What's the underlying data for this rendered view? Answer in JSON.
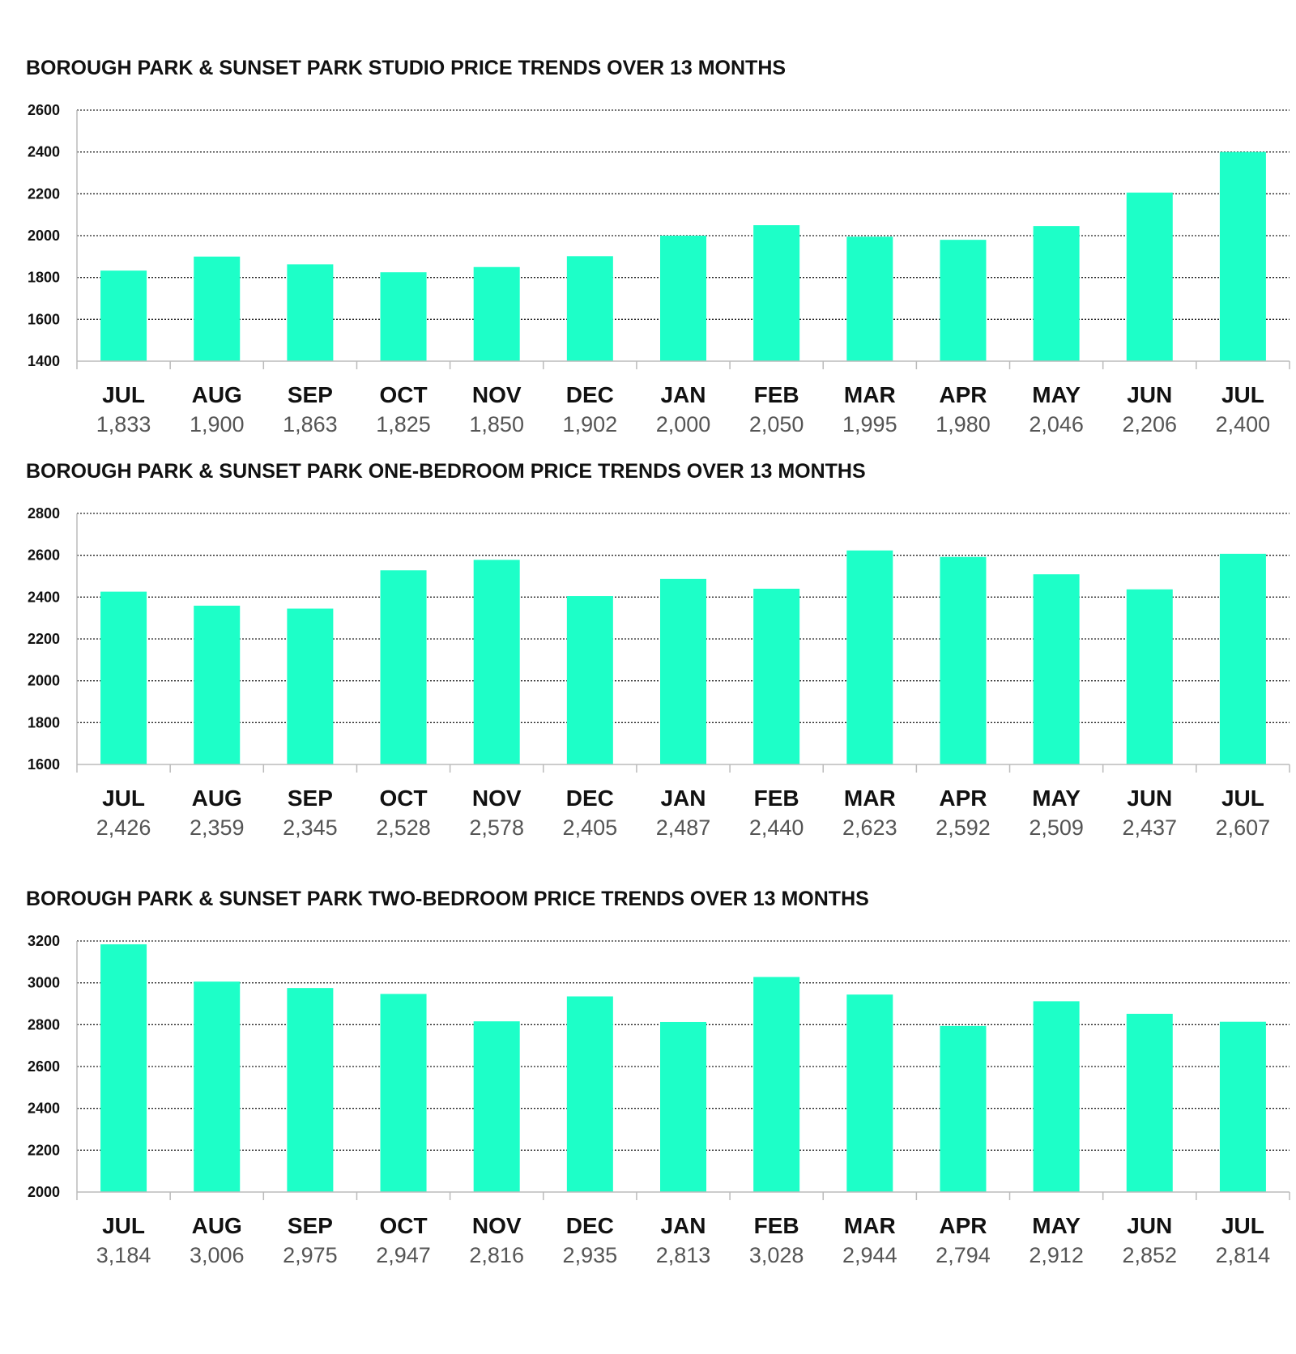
{
  "chart_data": [
    {
      "type": "bar",
      "title": "BOROUGH PARK & SUNSET PARK STUDIO PRICE TRENDS OVER 13 MONTHS",
      "categories": [
        "JUL",
        "AUG",
        "SEP",
        "OCT",
        "NOV",
        "DEC",
        "JAN",
        "FEB",
        "MAR",
        "APR",
        "MAY",
        "JUN",
        "JUL"
      ],
      "values": [
        1833,
        1900,
        1863,
        1825,
        1850,
        1902,
        2000,
        2050,
        1995,
        1980,
        2046,
        2206,
        2400
      ],
      "value_labels": [
        "1,833",
        "1,900",
        "1,863",
        "1,825",
        "1,850",
        "1,902",
        "2,000",
        "2,050",
        "1,995",
        "1,980",
        "2,046",
        "2,206",
        "2,400"
      ],
      "ylim": [
        1400,
        2600
      ],
      "yticks": [
        1400,
        1600,
        1800,
        2000,
        2200,
        2400,
        2600
      ],
      "xlabel": "",
      "ylabel": "",
      "grid": "horizontal-dotted",
      "legend": "none",
      "bar_color": "#1dffc8"
    },
    {
      "type": "bar",
      "title": "BOROUGH PARK & SUNSET PARK ONE-BEDROOM PRICE TRENDS OVER 13 MONTHS",
      "categories": [
        "JUL",
        "AUG",
        "SEP",
        "OCT",
        "NOV",
        "DEC",
        "JAN",
        "FEB",
        "MAR",
        "APR",
        "MAY",
        "JUN",
        "JUL"
      ],
      "values": [
        2426,
        2359,
        2345,
        2528,
        2578,
        2405,
        2487,
        2440,
        2623,
        2592,
        2509,
        2437,
        2607
      ],
      "value_labels": [
        "2,426",
        "2,359",
        "2,345",
        "2,528",
        "2,578",
        "2,405",
        "2,487",
        "2,440",
        "2,623",
        "2,592",
        "2,509",
        "2,437",
        "2,607"
      ],
      "ylim": [
        1600,
        2800
      ],
      "yticks": [
        1600,
        1800,
        2000,
        2200,
        2400,
        2600,
        2800
      ],
      "xlabel": "",
      "ylabel": "",
      "grid": "horizontal-dotted",
      "legend": "none",
      "bar_color": "#1dffc8"
    },
    {
      "type": "bar",
      "title": "BOROUGH PARK & SUNSET PARK  TWO-BEDROOM PRICE TRENDS OVER 13 MONTHS",
      "categories": [
        "JUL",
        "AUG",
        "SEP",
        "OCT",
        "NOV",
        "DEC",
        "JAN",
        "FEB",
        "MAR",
        "APR",
        "MAY",
        "JUN",
        "JUL"
      ],
      "values": [
        3184,
        3006,
        2975,
        2947,
        2816,
        2935,
        2813,
        3028,
        2944,
        2794,
        2912,
        2852,
        2814
      ],
      "value_labels": [
        "3,184",
        "3,006",
        "2,975",
        "2,947",
        "2,816",
        "2,935",
        "2,813",
        "3,028",
        "2,944",
        "2,794",
        "2,912",
        "2,852",
        "2,814"
      ],
      "ylim": [
        2000,
        3200
      ],
      "yticks": [
        2000,
        2200,
        2400,
        2600,
        2800,
        3000,
        3200
      ],
      "xlabel": "",
      "ylabel": "",
      "grid": "horizontal-dotted",
      "legend": "none",
      "bar_color": "#1dffc8"
    }
  ]
}
